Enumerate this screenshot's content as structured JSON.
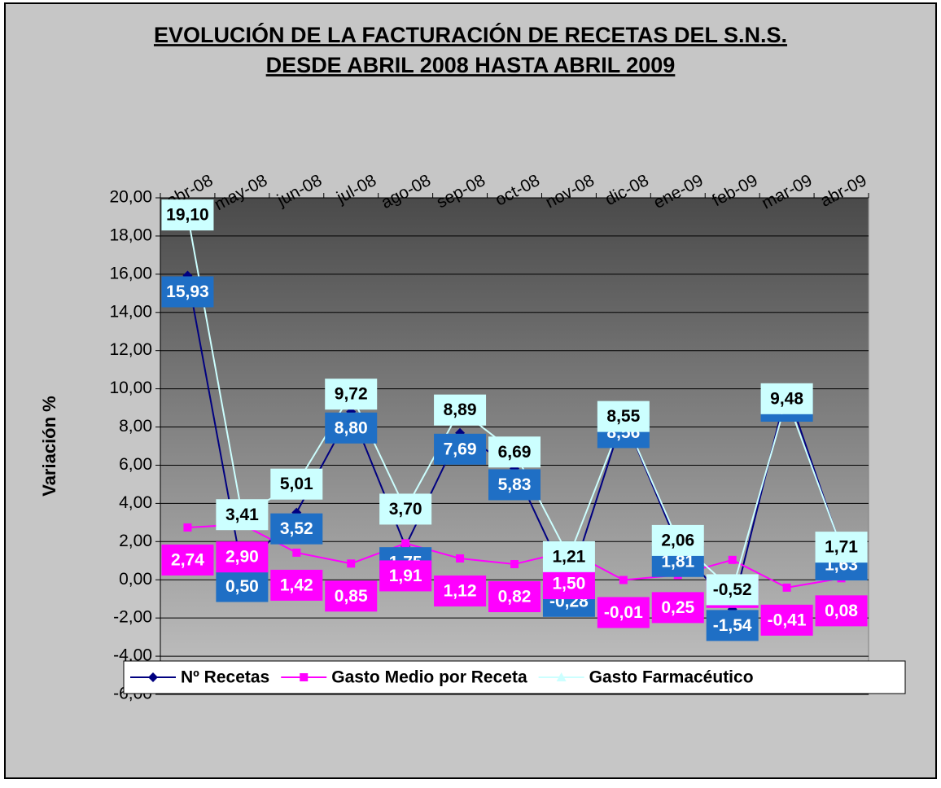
{
  "chart_data": {
    "type": "line",
    "title": "EVOLUCIÓN DE LA FACTURACIÓN DE RECETAS DEL S.N.S.",
    "subtitle": "DESDE  ABRIL 2008 HASTA ABRIL 2009",
    "y_label": "Variación %",
    "categories": [
      "abr-08",
      "may-08",
      "jun-08",
      "jul-08",
      "ago-08",
      "sep-08",
      "oct-08",
      "nov-08",
      "dic-08",
      "ene-09",
      "feb-09",
      "mar-09",
      "abr-09"
    ],
    "series": [
      {
        "name": "Nº Recetas",
        "color": "#000080",
        "marker": "diamond",
        "label_color": "#1f6fc5",
        "label_text": "#ffffff",
        "values": [
          15.93,
          0.5,
          3.52,
          8.8,
          1.75,
          7.69,
          5.83,
          -0.28,
          8.56,
          1.81,
          -1.54,
          9.94,
          1.63
        ],
        "value_labels": [
          "15,93",
          "0,50",
          "3,52",
          "8,80",
          "1,75",
          "7,69",
          "5,83",
          "-0,28",
          "8,56",
          "1,81",
          "-1,54",
          "9,94",
          "1,63"
        ]
      },
      {
        "name": "Gasto Medio por Receta",
        "color": "#ff00ff",
        "marker": "square",
        "label_color": "#ff00ff",
        "label_text": "#ffffff",
        "values": [
          2.74,
          2.9,
          1.42,
          0.85,
          1.91,
          1.12,
          0.82,
          1.5,
          -0.01,
          0.25,
          1.04,
          -0.41,
          0.08
        ],
        "value_labels": [
          "2,74",
          "2,90",
          "1,42",
          "0,85",
          "1,91",
          "1,12",
          "0,82",
          "1,50",
          "-0,01",
          "0,25",
          "1,04",
          "-0,41",
          "0,08"
        ]
      },
      {
        "name": "Gasto Farmacéutico",
        "color": "#ccffff",
        "marker": "triangle",
        "label_color": "#ccffff",
        "label_text": "#000000",
        "values": [
          19.1,
          3.41,
          5.01,
          9.72,
          3.7,
          8.89,
          6.69,
          1.21,
          8.55,
          2.06,
          -0.52,
          9.48,
          1.71
        ],
        "value_labels": [
          "19,10",
          "3,41",
          "5,01",
          "9,72",
          "3,70",
          "8,89",
          "6,69",
          "1,21",
          "8,55",
          "2,06",
          "-0,52",
          "9,48",
          "1,71"
        ]
      }
    ],
    "ylim": [
      -6,
      20
    ],
    "yticks": [
      {
        "value": -6,
        "label": "-6,00"
      },
      {
        "value": -4,
        "label": "-4,00"
      },
      {
        "value": -2,
        "label": "-2,00"
      },
      {
        "value": 0,
        "label": "0,00"
      },
      {
        "value": 2,
        "label": "2,00"
      },
      {
        "value": 4,
        "label": "4,00"
      },
      {
        "value": 6,
        "label": "6,00"
      },
      {
        "value": 8,
        "label": "8,00"
      },
      {
        "value": 10,
        "label": "10,00"
      },
      {
        "value": 12,
        "label": "12,00"
      },
      {
        "value": 14,
        "label": "14,00"
      },
      {
        "value": 16,
        "label": "16,00"
      },
      {
        "value": 18,
        "label": "18,00"
      },
      {
        "value": 20,
        "label": "20,00"
      }
    ],
    "grid": true,
    "legend": "bottom"
  }
}
